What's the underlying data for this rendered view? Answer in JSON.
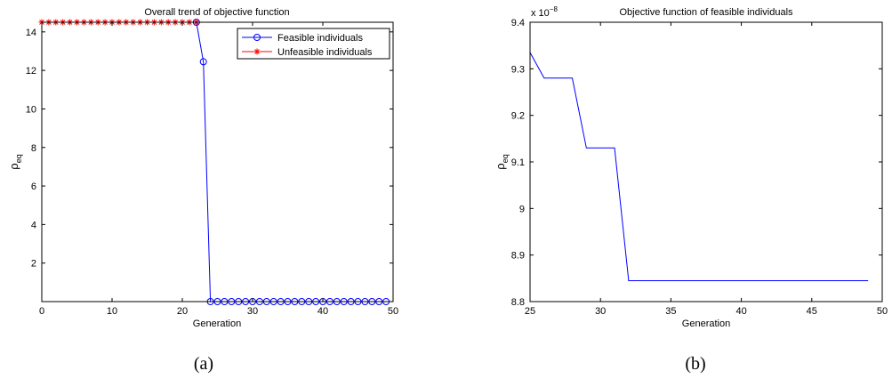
{
  "chart_data": [
    {
      "type": "line",
      "title": "Overall trend of objective function",
      "xlabel": "Generation",
      "ylabel": "ρ",
      "ylabel_sub": "eq",
      "xlim": [
        0,
        50
      ],
      "ylim": [
        0,
        14.5
      ],
      "xticks": [
        0,
        10,
        20,
        30,
        40,
        50
      ],
      "yticks": [
        2,
        4,
        6,
        8,
        10,
        12,
        14
      ],
      "grid": false,
      "legend_position": "top-right",
      "caption": "(a)",
      "series": [
        {
          "name": "Feasible individuals",
          "color": "#0000ff",
          "marker": "circle",
          "x": [
            22,
            23,
            24,
            25,
            26,
            27,
            28,
            29,
            30,
            31,
            32,
            33,
            34,
            35,
            36,
            37,
            38,
            39,
            40,
            41,
            42,
            43,
            44,
            45,
            46,
            47,
            48,
            49
          ],
          "y": [
            14.5,
            12.45,
            0,
            0,
            0,
            0,
            0,
            0,
            0,
            0,
            0,
            0,
            0,
            0,
            0,
            0,
            0,
            0,
            0,
            0,
            0,
            0,
            0,
            0,
            0,
            0,
            0,
            0
          ]
        },
        {
          "name": "Unfeasible individuals",
          "color": "#ff0000",
          "marker": "star",
          "x": [
            0,
            1,
            2,
            3,
            4,
            5,
            6,
            7,
            8,
            9,
            10,
            11,
            12,
            13,
            14,
            15,
            16,
            17,
            18,
            19,
            20,
            21,
            22
          ],
          "y": [
            14.5,
            14.5,
            14.5,
            14.5,
            14.5,
            14.5,
            14.5,
            14.5,
            14.5,
            14.5,
            14.5,
            14.5,
            14.5,
            14.5,
            14.5,
            14.5,
            14.5,
            14.5,
            14.5,
            14.5,
            14.5,
            14.5,
            14.5
          ]
        }
      ]
    },
    {
      "type": "line",
      "title": "Objective function of feasible individuals",
      "xlabel": "Generation",
      "ylabel": "ρ",
      "ylabel_sub": "eq",
      "y_exponent": "x 10",
      "y_exponent_power": "−8",
      "xlim": [
        25,
        50
      ],
      "ylim": [
        8.8,
        9.4
      ],
      "xticks": [
        25,
        30,
        35,
        40,
        45,
        50
      ],
      "yticks": [
        8.8,
        8.9,
        9.0,
        9.1,
        9.2,
        9.3,
        9.4
      ],
      "ytick_labels": [
        "8.8",
        "8.9",
        "9",
        "9.1",
        "9.2",
        "9.3",
        "9.4"
      ],
      "grid": false,
      "caption": "(b)",
      "series": [
        {
          "color": "#0000ff",
          "x": [
            25,
            26,
            27,
            28,
            29,
            30,
            31,
            32,
            33,
            34,
            35,
            36,
            37,
            38,
            39,
            40,
            41,
            42,
            43,
            44,
            45,
            46,
            47,
            48,
            49
          ],
          "y": [
            9.335,
            9.28,
            9.28,
            9.28,
            9.13,
            9.13,
            9.13,
            8.845,
            8.845,
            8.845,
            8.845,
            8.845,
            8.845,
            8.845,
            8.845,
            8.845,
            8.845,
            8.845,
            8.845,
            8.845,
            8.845,
            8.845,
            8.845,
            8.845,
            8.845
          ]
        }
      ]
    }
  ]
}
